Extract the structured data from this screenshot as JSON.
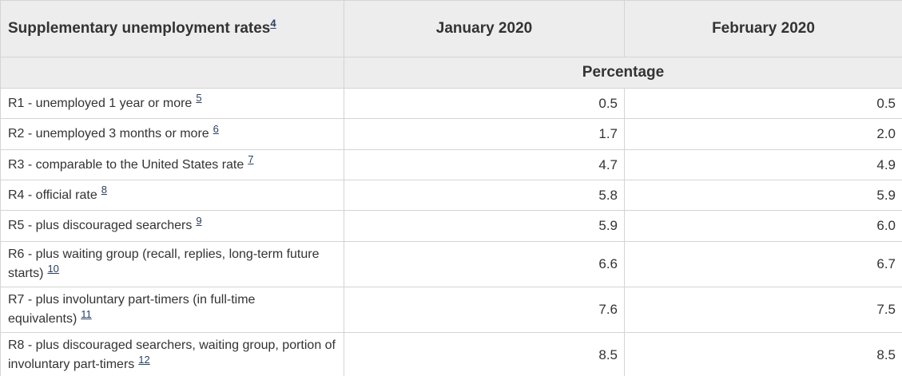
{
  "colors": {
    "header_bg": "#ededed",
    "border": "#d4d4d4",
    "text": "#333333",
    "footnote_link": "#284162",
    "row_bg": "#ffffff"
  },
  "table": {
    "title": "Supplementary unemployment rates",
    "title_footnote": "4",
    "col_headers": [
      "January 2020",
      "February 2020"
    ],
    "unit_header": "Percentage",
    "rows": [
      {
        "label": "R1 - unemployed 1 year or more",
        "footnote": "5",
        "values": [
          "0.5",
          "0.5"
        ]
      },
      {
        "label": "R2 - unemployed 3 months or more",
        "footnote": "6",
        "values": [
          "1.7",
          "2.0"
        ]
      },
      {
        "label": "R3 - comparable to the United States rate",
        "footnote": "7",
        "values": [
          "4.7",
          "4.9"
        ]
      },
      {
        "label": "R4 - official rate",
        "footnote": "8",
        "values": [
          "5.8",
          "5.9"
        ]
      },
      {
        "label": "R5 - plus discouraged searchers",
        "footnote": "9",
        "values": [
          "5.9",
          "6.0"
        ]
      },
      {
        "label": "R6 - plus waiting group (recall, replies, long-term future starts)",
        "footnote": "10",
        "values": [
          "6.6",
          "6.7"
        ]
      },
      {
        "label": "R7 - plus involuntary part-timers (in full-time equivalents)",
        "footnote": "11",
        "values": [
          "7.6",
          "7.5"
        ]
      },
      {
        "label": "R8 - plus discouraged searchers, waiting group, portion of involuntary part-timers",
        "footnote": "12",
        "values": [
          "8.5",
          "8.5"
        ]
      }
    ]
  }
}
